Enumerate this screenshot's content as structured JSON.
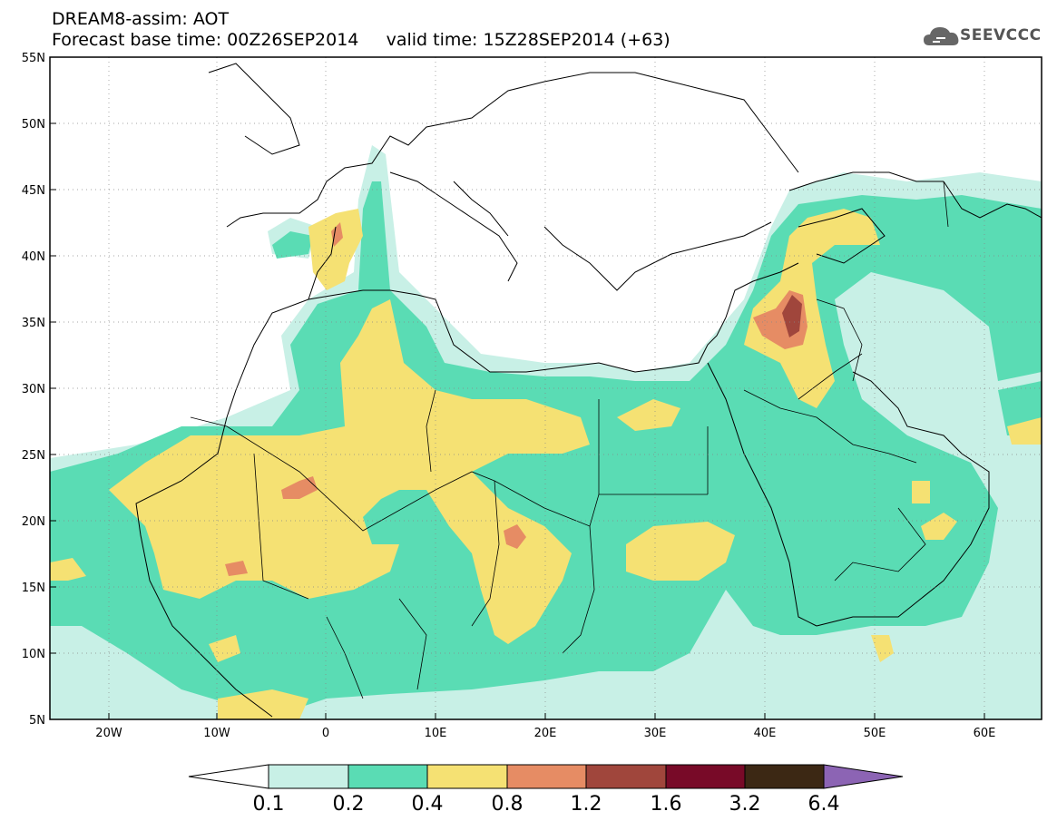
{
  "header": {
    "title_line1": "DREAM8-assim: AOT",
    "title_line2": "Forecast base time: 00Z26SEP2014     valid time: 15Z28SEP2014 (+63)",
    "logo_text": "SEEVCCC"
  },
  "map": {
    "lat_labels": [
      "55N",
      "50N",
      "45N",
      "40N",
      "35N",
      "30N",
      "25N",
      "20N",
      "15N",
      "10N",
      "5N"
    ],
    "lon_labels": [
      "20W",
      "10W",
      "0",
      "10E",
      "20E",
      "30E",
      "40E",
      "50E",
      "60E"
    ],
    "lon_range": [
      -25,
      65
    ],
    "lat_range": [
      5,
      55
    ],
    "grid": "dotted"
  },
  "colorbar": {
    "labels": [
      "0.1",
      "0.2",
      "0.4",
      "0.8",
      "1.2",
      "1.6",
      "3.2",
      "6.4"
    ],
    "colors": [
      "#ffffff",
      "#c8f0e6",
      "#5adcb4",
      "#f5e173",
      "#e68c64",
      "#a0463c",
      "#780a28",
      "#3c2814",
      "#8c64b4"
    ]
  }
}
